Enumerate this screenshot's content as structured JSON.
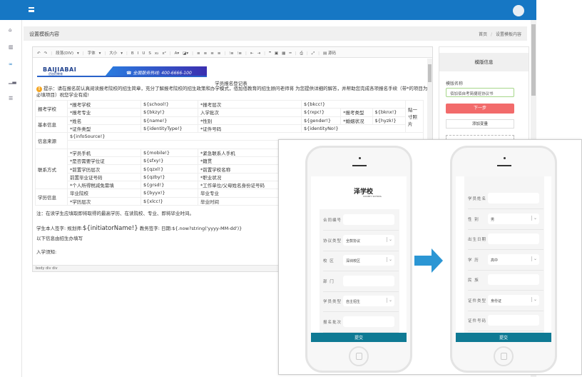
{
  "header": {
    "menu_icon": "hamburger-icon",
    "avatar": "user-avatar"
  },
  "sidebar": {
    "icons": [
      "home-icon",
      "bank-icon",
      "link-icon",
      "chart-icon",
      "list-icon"
    ]
  },
  "page": {
    "title": "设置模板内容",
    "breadcrumb": [
      "首页",
      "/",
      "设置模板内容"
    ]
  },
  "editor": {
    "toolbar": [
      "↶",
      "↷",
      "|",
      "段落(DIV)",
      "▾",
      "|",
      "字体",
      "▾",
      "|",
      "大小",
      "▾",
      "|",
      "B",
      "I",
      "U",
      "S",
      "x₂",
      "x²",
      "|",
      "A▾",
      "◪▾",
      "|",
      "≡",
      "≡",
      "≡",
      "≡",
      "|",
      "⁝≡",
      "⁝≡",
      "|",
      "⇤",
      "⇥",
      "|",
      "❞",
      "▣",
      "▦",
      "═",
      "|",
      "⎙",
      "|",
      "⤢",
      "|",
      "▤ 源码"
    ],
    "banner": {
      "logo": "BAIJIABAI",
      "logo_sub": "佰加佰教育",
      "hotline": "☎  全国服务热线: 400-6666-100"
    },
    "form_title": "学员报名登记表",
    "tip": "提示：请在报名前认真阅读报考院校的招生简章，充分了解报考院校的招生政策和办学模式，佰加佰教育的招生顾问老师将 为您提供详细的解答，并帮助您完成各项报名手续（带*的项目为必填项目）祝您学业有成!",
    "table": [
      [
        {
          "t": "报考学校",
          "rs": 2
        },
        {
          "t": "*报考学校"
        },
        {
          "t": "${school!}"
        },
        {
          "t": "*报考层次"
        },
        {
          "t": "${bkcc!}",
          "cs": 3
        },
        {
          "t": "贴一寸照片",
          "rs": 4
        }
      ],
      [
        {
          "t": "*报考专业"
        },
        {
          "t": "${bkzy!}"
        },
        {
          "t": "入学批次"
        },
        {
          "t": "${rxpc!}"
        },
        {
          "t": "*报考类型"
        },
        {
          "t": "${bknx!}"
        }
      ],
      [
        {
          "t": "基本信息",
          "rs": 2
        },
        {
          "t": "*姓名"
        },
        {
          "t": "${name!}"
        },
        {
          "t": "*性别"
        },
        {
          "t": "${gender!}"
        },
        {
          "t": "*婚姻状况"
        },
        {
          "t": "${hyzk!}"
        }
      ],
      [
        {
          "t": "*证件类型"
        },
        {
          "t": "${identityType!}"
        },
        {
          "t": "*证件号码"
        },
        {
          "t": "${identityNo!}",
          "cs": 3
        }
      ],
      [
        {
          "t": "信息来源",
          "rs": 2
        },
        {
          "t": "${infoSource!}",
          "cs": 7
        }
      ],
      [
        {
          "t": "",
          "cs": 7
        }
      ],
      [
        {
          "t": "联系方式",
          "rs": 5
        },
        {
          "t": "*学员手机"
        },
        {
          "t": "${mobile!}"
        },
        {
          "t": "*紧急联系人手机"
        },
        {
          "t": "",
          "cs": 4
        }
      ],
      [
        {
          "t": "*是否需要学位证"
        },
        {
          "t": "${sfxy!}"
        },
        {
          "t": "*籍贯"
        },
        {
          "t": "",
          "cs": 4
        }
      ],
      [
        {
          "t": "*前置学历层次"
        },
        {
          "t": "${qzxl!}"
        },
        {
          "t": "*前置学校名称"
        },
        {
          "t": "",
          "cs": 4
        }
      ],
      [
        {
          "t": "前置毕业证号码"
        },
        {
          "t": "${qzby!}"
        },
        {
          "t": "*职业状况"
        },
        {
          "t": "",
          "cs": 4
        }
      ],
      [
        {
          "t": "*个人所得税减免需填"
        },
        {
          "t": "${grsd!}"
        },
        {
          "t": "*工作单位/父母姓名身份证号码"
        },
        {
          "t": "",
          "cs": 4
        }
      ],
      [
        {
          "t": "学历信息",
          "rs": 2
        },
        {
          "t": "毕业院校"
        },
        {
          "t": "${byyx!}"
        },
        {
          "t": "毕业专业"
        },
        {
          "t": "",
          "cs": 4
        }
      ],
      [
        {
          "t": "*学历层次"
        },
        {
          "t": "${xlcc!}"
        },
        {
          "t": "毕业时间"
        },
        {
          "t": "",
          "cs": 4
        }
      ]
    ],
    "note": "注：在读学生应填取即将取得的最高学历、在读院校、专业、即将毕业时间。",
    "signature_prefix": "学生本人签字: 规划师:",
    "signature_var": "${initiatorName!}",
    "signature_suffix": " 教务签字: 日期:${.now?string('yyyy-MM-dd')}",
    "admin_line": "以下信息由招生办填写",
    "notice": "入学须知:",
    "path": "body  div  div"
  },
  "template_panel": {
    "title": "模版信息",
    "name_label": "模版名称",
    "name_value": "佰加佰自考简捷班协议书",
    "next_button": "下一步",
    "add_variable_button": "添加变量"
  },
  "phone_left": {
    "school_logo": "泽学校",
    "school_sub": "COUNTY SCHOOL",
    "fields": [
      {
        "label": "合同编号",
        "value": "",
        "select": false
      },
      {
        "label": "协议类型",
        "value": "全款协议",
        "select": true
      },
      {
        "label": "校    区",
        "value": "深圳校区",
        "select": true
      },
      {
        "label": "部    门",
        "value": "",
        "select": false
      },
      {
        "label": "学员类型",
        "value": "自主招生",
        "select": true
      },
      {
        "label": "报名批次",
        "value": "",
        "select": false
      }
    ],
    "submit": "提交"
  },
  "phone_right": {
    "fields": [
      {
        "label": "学员姓名",
        "value": "",
        "select": false
      },
      {
        "label": "性    别",
        "value": "男",
        "select": true
      },
      {
        "label": "出生日期",
        "value": "",
        "select": false
      },
      {
        "label": "学    历",
        "value": "高中",
        "select": true
      },
      {
        "label": "民    族",
        "value": "",
        "select": false
      },
      {
        "label": "证件类型",
        "value": "身份证",
        "select": true
      },
      {
        "label": "证件号码",
        "value": "",
        "select": false
      }
    ],
    "submit": "提交"
  },
  "colors": {
    "header": "#1677c4",
    "next_button": "#f26b6b",
    "submit_bar": "#0f7a94",
    "arrow": "#2b96d4"
  }
}
